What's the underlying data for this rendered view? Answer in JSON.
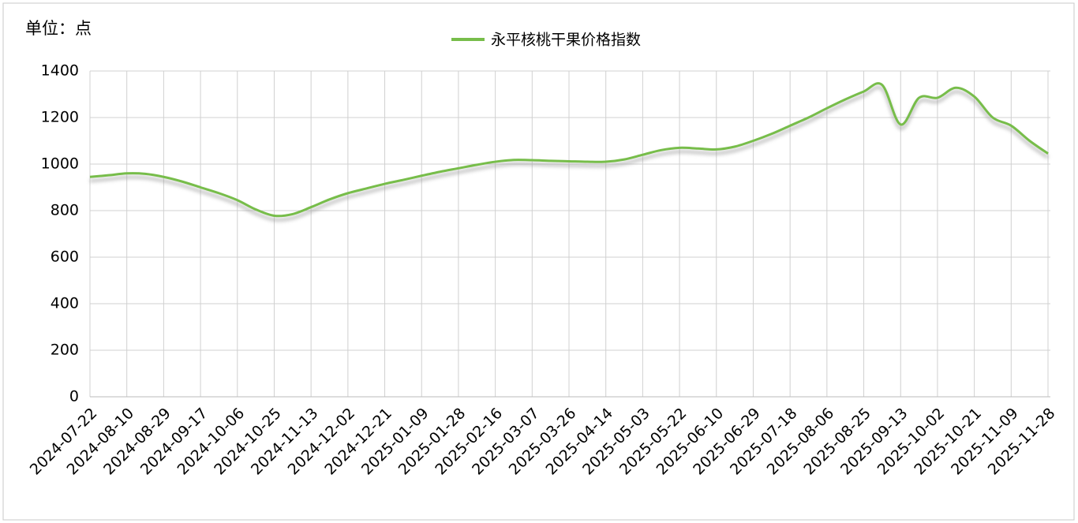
{
  "chart_data": {
    "type": "line",
    "unit_label": "单位：点",
    "categories": [
      "2024-07-22",
      null,
      "2024-08-10",
      null,
      "2024-08-29",
      null,
      "2024-09-17",
      null,
      "2024-10-06",
      null,
      "2024-10-25",
      null,
      "2024-11-13",
      null,
      "2024-12-02",
      null,
      "2024-12-21",
      null,
      "2025-01-09",
      null,
      "2025-01-28",
      null,
      "2025-02-16",
      null,
      "2025-03-07",
      null,
      "2025-03-26",
      null,
      "2025-04-14",
      null,
      "2025-05-03",
      null,
      "2025-05-22",
      null,
      "2025-06-10",
      null,
      "2025-06-29",
      null,
      "2025-07-18",
      null,
      "2025-08-06",
      null,
      "2025-08-25",
      null,
      "2025-09-13",
      null,
      "2025-10-02",
      null,
      "2025-10-21",
      null,
      "2025-11-09",
      null,
      "2025-11-28"
    ],
    "series": [
      {
        "name": "永平核桃干果价格指数",
        "color": "#77bd4a",
        "values": [
          945,
          952,
          960,
          958,
          945,
          925,
          900,
          875,
          845,
          805,
          778,
          785,
          815,
          848,
          875,
          895,
          915,
          932,
          950,
          967,
          982,
          997,
          1010,
          1018,
          1017,
          1014,
          1012,
          1010,
          1010,
          1020,
          1040,
          1060,
          1070,
          1067,
          1063,
          1075,
          1100,
          1130,
          1165,
          1200,
          1240,
          1278,
          1312,
          1340,
          1170,
          1285,
          1285,
          1328,
          1290,
          1200,
          1165,
          1100,
          1045
        ]
      }
    ],
    "ylim": [
      0,
      1400
    ],
    "yticks": [
      0,
      200,
      400,
      600,
      800,
      1000,
      1200,
      1400
    ],
    "grid": true
  }
}
